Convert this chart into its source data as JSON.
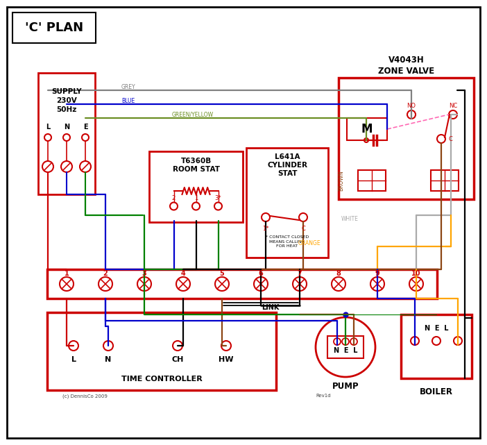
{
  "title": "'C' PLAN",
  "bg_color": "#ffffff",
  "border_color": "#000000",
  "red": "#cc0000",
  "blue": "#0000cc",
  "green": "#008000",
  "black": "#000000",
  "brown": "#8B4513",
  "orange": "#FFA500",
  "grey": "#808080",
  "green_yellow": "#6B8E23",
  "white_wire": "#aaaaaa",
  "pink_dashed": "#ff69b4",
  "footnote": "(c) DennisCo 2009",
  "rev": "Rev1d"
}
